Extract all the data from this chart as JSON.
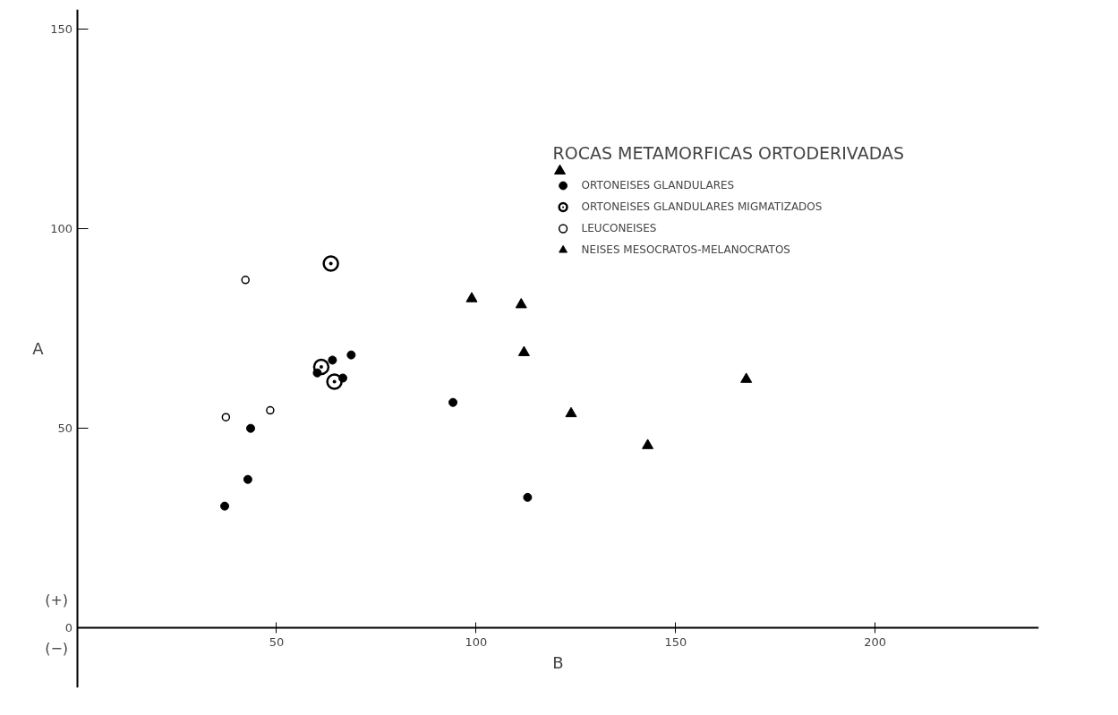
{
  "chart_data": {
    "type": "scatter",
    "xlabel": "B",
    "ylabel": "A",
    "legend_title": "ROCAS METAMORFICAS ORTODERIVADAS",
    "xlim": [
      0,
      241
    ],
    "ylim": [
      -15,
      155
    ],
    "xticks": [
      50,
      100,
      150,
      200
    ],
    "yticks": [
      0,
      50,
      100,
      150
    ],
    "grid": false,
    "legend": "top right",
    "annotations": [
      "(+)",
      "(−)"
    ],
    "series": [
      {
        "name": "ORTONEISES GLANDULARES",
        "color": "#000000",
        "marker": "circle",
        "x": [
          37.0,
          42.8,
          43.5,
          60.2,
          64.0,
          68.7,
          66.6,
          94.2,
          112.9
        ],
        "values": [
          30.5,
          37.2,
          50,
          63.9,
          67.1,
          68.4,
          62.6,
          56.5,
          32.7
        ]
      },
      {
        "name": "ORTONEISES GLANDULARES MIGMATIZADOS",
        "color": "#000000",
        "marker": "circle_dot",
        "x": [
          61.2,
          64.5,
          63.6
        ],
        "values": [
          65.4,
          61.7,
          91.3
        ]
      },
      {
        "name": "LEUCONEISES",
        "color": "#000000",
        "marker": "circle_open",
        "x": [
          42.2,
          37.3,
          48.4
        ],
        "values": [
          87.2,
          52.8,
          54.5
        ]
      },
      {
        "name": "NEISES MESOCRATOS-MELANOCRATOS",
        "color": "#000000",
        "marker": "triangle",
        "x": [
          121,
          98.9,
          111.3,
          112,
          123.8,
          143,
          167.7
        ],
        "values": [
          114.5,
          82.5,
          81,
          69,
          53.7,
          45.7,
          62.3
        ]
      }
    ]
  }
}
